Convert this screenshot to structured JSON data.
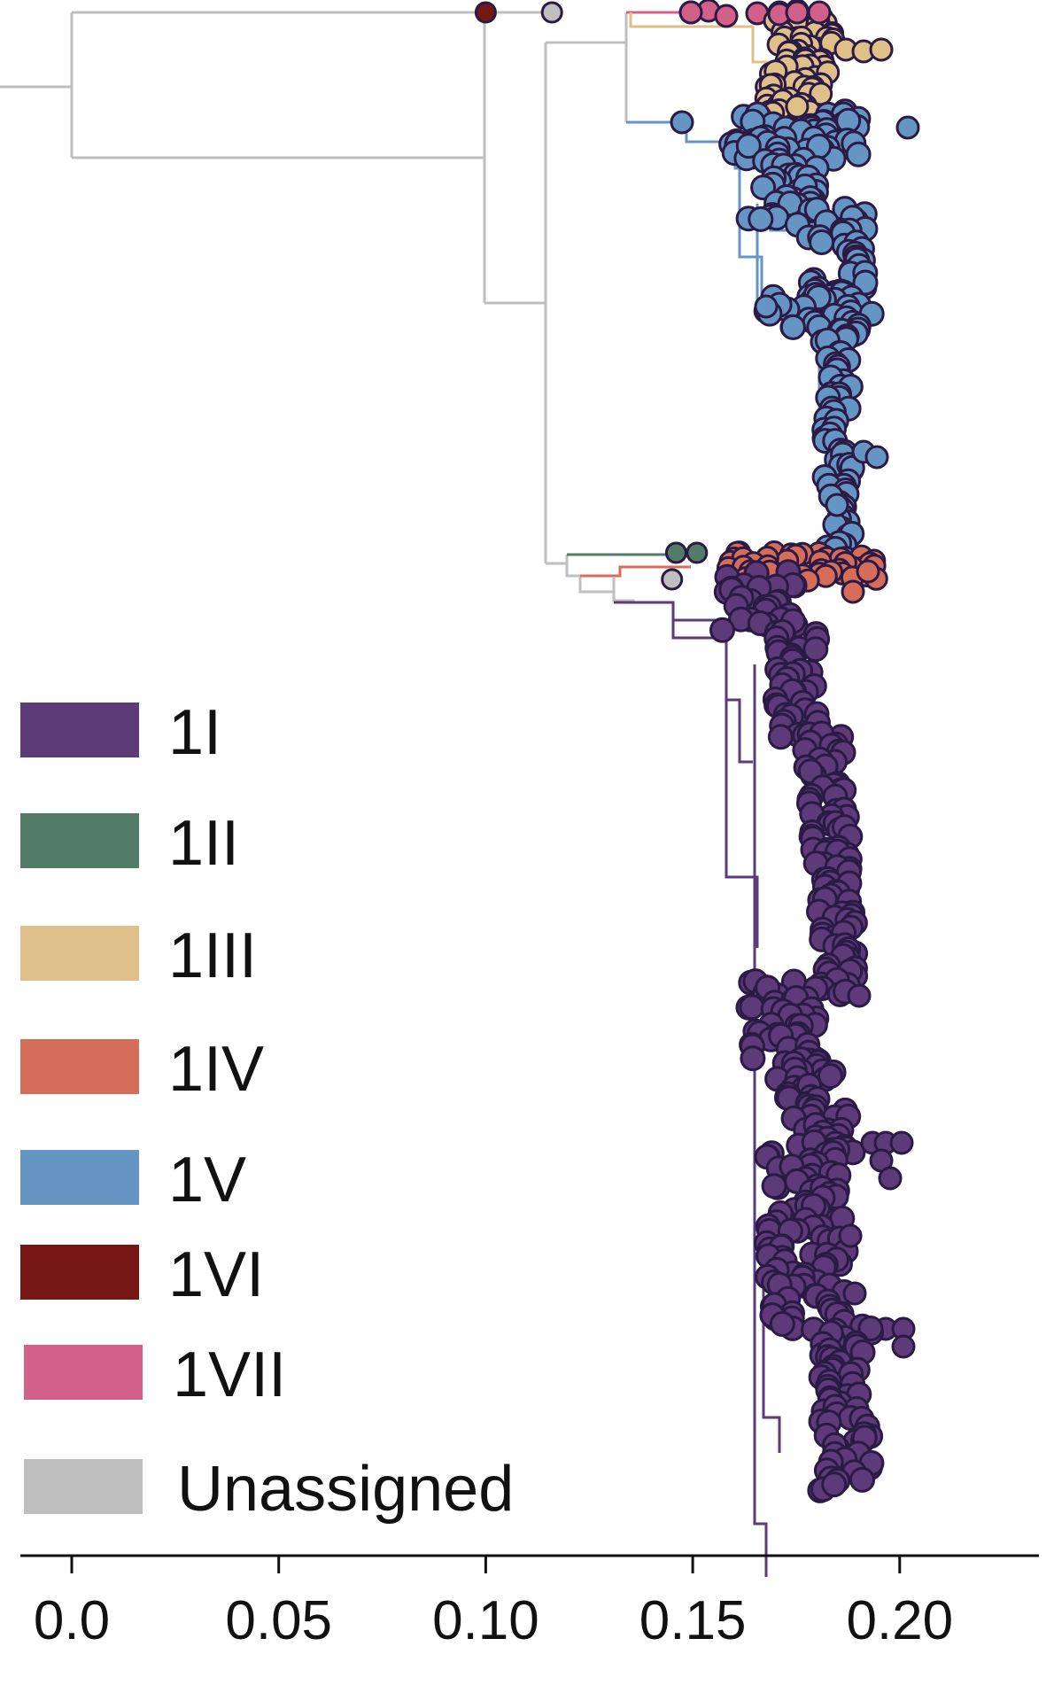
{
  "chart_data": {
    "type": "scatter",
    "subtype": "phylogenetic-tree",
    "title": "",
    "xlabel": "",
    "ylabel": "",
    "xlim": [
      -0.0175,
      0.2375
    ],
    "x_ticks": [
      {
        "value": 0.0,
        "label": "0.0"
      },
      {
        "value": 0.05,
        "label": "0.05"
      },
      {
        "value": 0.1,
        "label": "0.10"
      },
      {
        "value": 0.15,
        "label": "0.15"
      },
      {
        "value": 0.2,
        "label": "0.20"
      }
    ],
    "grid": false,
    "legend_position": "left",
    "series": [
      {
        "name": "1I",
        "color": "#5d3a78"
      },
      {
        "name": "1II",
        "color": "#527b68"
      },
      {
        "name": "1III",
        "color": "#dec088"
      },
      {
        "name": "1IV",
        "color": "#d66d59"
      },
      {
        "name": "1V",
        "color": "#6495c3"
      },
      {
        "name": "1VI",
        "color": "#761713"
      },
      {
        "name": "1VII",
        "color": "#d26088"
      },
      {
        "name": "Unassigned",
        "color": "#bfbfbf"
      }
    ],
    "tips": [
      {
        "clade": "1VI",
        "divergence": 0.1
      },
      {
        "clade": "Unassigned",
        "divergence": 0.116
      },
      {
        "clade": "Unassigned",
        "divergence": 0.145
      },
      {
        "clade": "1II",
        "divergence": 0.146
      },
      {
        "clade": "1II",
        "divergence": 0.151
      }
    ],
    "clades": [
      {
        "name": "1VII",
        "divergence_min": 0.15,
        "divergence_max": 0.182
      },
      {
        "name": "1III",
        "divergence_min": 0.166,
        "divergence_max": 0.197
      },
      {
        "name": "1V",
        "divergence_min": 0.145,
        "divergence_max": 0.202
      },
      {
        "name": "1IV",
        "divergence_min": 0.15,
        "divergence_max": 0.193
      },
      {
        "name": "1I",
        "divergence_min": 0.158,
        "divergence_max": 0.203
      }
    ]
  }
}
